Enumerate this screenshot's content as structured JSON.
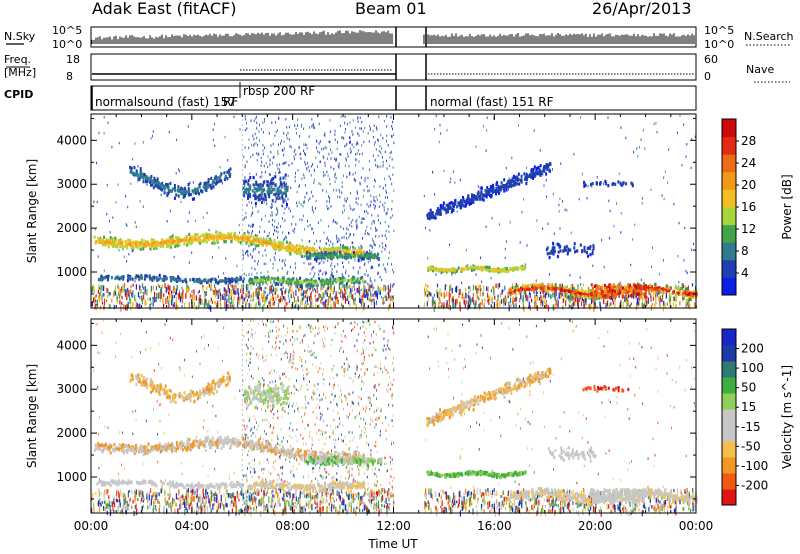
{
  "header": {
    "title": "Adak East (fitACF)",
    "beam": "Beam 01",
    "date": "26/Apr/2013"
  },
  "noise_panel": {
    "left_label": "N.Sky",
    "right_label": "N.Search",
    "left_ticks": [
      "10^5",
      "10^0"
    ],
    "right_ticks": [
      "10^5",
      "10^0"
    ]
  },
  "freq_panel": {
    "left_label_1": "Freq.",
    "left_label_2": "[MHz]",
    "right_label": "Nave",
    "left_ticks": [
      "18",
      "8"
    ],
    "right_ticks": [
      "60",
      "0"
    ]
  },
  "cpid_panel": {
    "label": "CPID",
    "modes": [
      "normalsound (fast) 157",
      "RF",
      "rbsp 200 RF",
      "normal (fast) 151 RF"
    ]
  },
  "colors": {
    "power_scale": [
      "#0a1ee6",
      "#1f3fb0",
      "#2f7a8c",
      "#43a24a",
      "#a6d63a",
      "#f0c020",
      "#f29a18",
      "#ee6a14",
      "#e22b12",
      "#cc0a0a"
    ],
    "velocity_scale": [
      "#e11414",
      "#ef5a14",
      "#f19722",
      "#f3bf4a",
      "#c7c7c7",
      "#c7c7c7",
      "#8fd05a",
      "#3fae3e",
      "#2b7a74",
      "#1d3aa8",
      "#1a25c8"
    ]
  },
  "chart_data": [
    {
      "type": "heatmap",
      "title": "",
      "xlabel": "",
      "ylabel": "Slant Range [km]",
      "x_ticks": [
        "00:00",
        "04:00",
        "08:00",
        "12:00",
        "16:00",
        "20:00",
        "00:00"
      ],
      "y_ticks": [
        "1000",
        "2000",
        "3000",
        "4000"
      ],
      "ylim": [
        180,
        4600
      ],
      "xlim": [
        0,
        24
      ],
      "data_gap_hours": [
        12.0,
        13.2
      ],
      "colorbar": {
        "label": "Power [dB]",
        "ticks": [
          "4",
          "8",
          "12",
          "16",
          "20",
          "24",
          "28"
        ],
        "range": [
          0,
          30
        ]
      }
    },
    {
      "type": "heatmap",
      "title": "",
      "xlabel": "Time UT",
      "ylabel": "Slant Range [km]",
      "x_ticks": [
        "00:00",
        "04:00",
        "08:00",
        "12:00",
        "16:00",
        "20:00",
        "00:00"
      ],
      "y_ticks": [
        "1000",
        "2000",
        "3000",
        "4000"
      ],
      "ylim": [
        180,
        4600
      ],
      "xlim": [
        0,
        24
      ],
      "data_gap_hours": [
        12.0,
        13.2
      ],
      "colorbar": {
        "label": "Velocity [m s^-1]",
        "ticks": [
          "200",
          "100",
          "50",
          "15",
          "-15",
          "-50",
          "-100",
          "-200"
        ],
        "range": [
          -250,
          250
        ]
      }
    }
  ]
}
